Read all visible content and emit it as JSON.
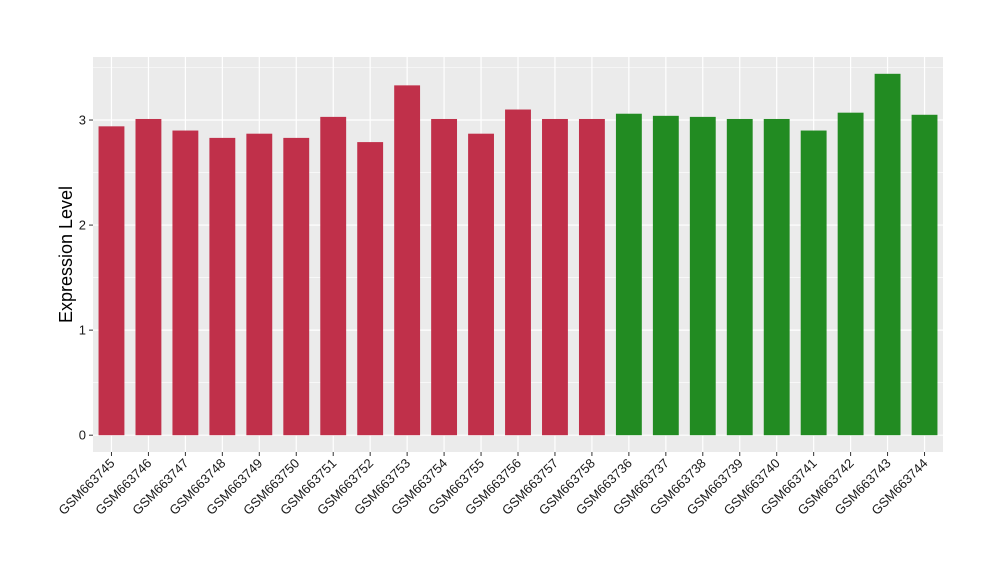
{
  "chart_data": {
    "type": "bar",
    "title": "",
    "xlabel": "",
    "ylabel": "Expression Level",
    "ylim": [
      -0.16,
      3.6
    ],
    "yticks": [
      0,
      1,
      2,
      3
    ],
    "grid": true,
    "categories": [
      "GSM663745",
      "GSM663746",
      "GSM663747",
      "GSM663748",
      "GSM663749",
      "GSM663750",
      "GSM663751",
      "GSM663752",
      "GSM663753",
      "GSM663754",
      "GSM663755",
      "GSM663756",
      "GSM663757",
      "GSM663758",
      "GSM663736",
      "GSM663737",
      "GSM663738",
      "GSM663739",
      "GSM663740",
      "GSM663741",
      "GSM663742",
      "GSM663743",
      "GSM663744"
    ],
    "values": [
      2.94,
      3.01,
      2.9,
      2.83,
      2.87,
      2.83,
      3.03,
      2.79,
      3.33,
      3.01,
      2.87,
      3.1,
      3.01,
      3.01,
      3.06,
      3.04,
      3.03,
      3.01,
      3.01,
      2.9,
      3.07,
      3.44,
      3.05
    ],
    "bar_colors": [
      "#C0304A",
      "#C0304A",
      "#C0304A",
      "#C0304A",
      "#C0304A",
      "#C0304A",
      "#C0304A",
      "#C0304A",
      "#C0304A",
      "#C0304A",
      "#C0304A",
      "#C0304A",
      "#C0304A",
      "#C0304A",
      "#228B22",
      "#228B22",
      "#228B22",
      "#228B22",
      "#228B22",
      "#228B22",
      "#228B22",
      "#228B22",
      "#228B22"
    ],
    "panel_background": "#EBEBEB",
    "gridline_color": "#FFFFFF"
  }
}
